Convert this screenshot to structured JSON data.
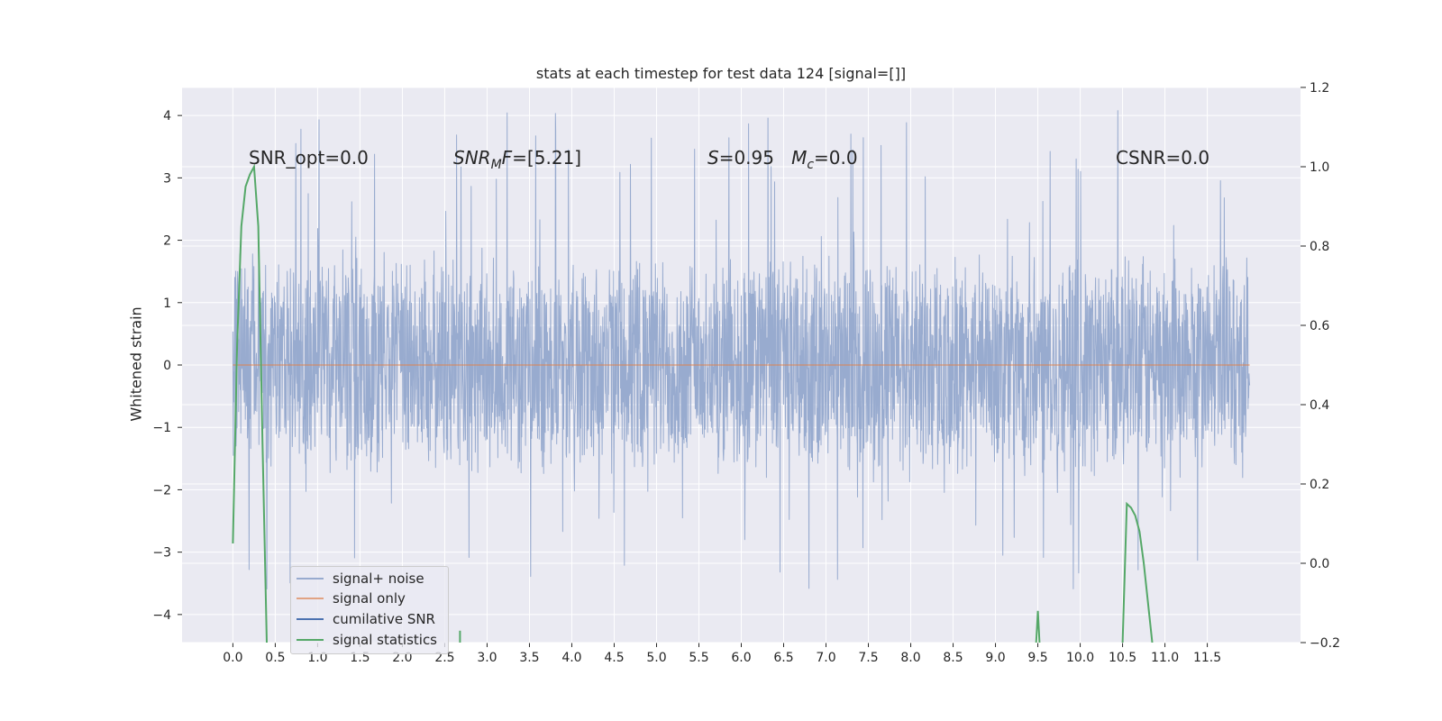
{
  "chart_data": {
    "type": "line",
    "title": "stats at each timestep for test data 124 [signal=[]]",
    "ylabel": "Whitened strain",
    "xlabel": "",
    "xlim": [
      -0.6,
      12.6
    ],
    "ylim": [
      -4.45,
      4.45
    ],
    "y2lim": [
      -0.2,
      1.2
    ],
    "grid": true,
    "legend_position": "lower-left",
    "x_ticks": [
      "0.0",
      "0.5",
      "1.0",
      "1.5",
      "2.0",
      "2.5",
      "3.0",
      "3.5",
      "4.0",
      "4.5",
      "5.0",
      "5.5",
      "6.0",
      "6.5",
      "7.0",
      "7.5",
      "8.0",
      "8.5",
      "9.0",
      "9.5",
      "10.0",
      "10.5",
      "11.0",
      "11.5"
    ],
    "y_ticks": [
      "4",
      "3",
      "2",
      "1",
      "0",
      "−1",
      "−2",
      "−3",
      "−4"
    ],
    "y2_ticks": [
      "1.2",
      "1.0",
      "0.8",
      "0.6",
      "0.4",
      "0.2",
      "0.0",
      "−0.2"
    ],
    "series": [
      {
        "name": "signal+ noise",
        "color": "#98abcf",
        "axis": "left",
        "x_range": [
          0,
          12.0
        ],
        "band_min": -2.0,
        "band_max": 2.0,
        "peak_max": 4.1,
        "peak_min": -3.6
      },
      {
        "name": "signal only",
        "color": "#dd8452",
        "axis": "left",
        "x": [
          0,
          12.0
        ],
        "y": [
          0,
          0
        ]
      },
      {
        "name": "cumilative SNR",
        "color": "#4c72b0",
        "axis": "right",
        "x": [],
        "y": []
      },
      {
        "name": "signal statistics",
        "color": "#55a868",
        "axis": "right",
        "segments": [
          {
            "x": [
              0.0,
              0.05,
              0.1,
              0.15,
              0.2,
              0.25,
              0.3,
              0.35,
              0.4
            ],
            "y": [
              0.05,
              0.55,
              0.85,
              0.95,
              0.98,
              1.0,
              0.85,
              0.3,
              -0.2
            ]
          },
          {
            "x": [
              2.68,
              2.68
            ],
            "y": [
              -0.2,
              -0.17
            ]
          },
          {
            "x": [
              9.48,
              9.5,
              9.52
            ],
            "y": [
              -0.2,
              -0.12,
              -0.2
            ]
          },
          {
            "x": [
              10.5,
              10.55,
              10.6,
              10.65,
              10.7,
              10.75,
              10.8,
              10.85
            ],
            "y": [
              -0.2,
              0.15,
              0.14,
              0.12,
              0.08,
              0.0,
              -0.1,
              -0.2
            ]
          }
        ]
      }
    ],
    "annotations": [
      {
        "text": "SNR_opt=0.0"
      },
      {
        "parts": [
          [
            "SNR",
            "i"
          ],
          [
            "M",
            "sub-i"
          ],
          [
            "F",
            "i"
          ],
          [
            "=[5.21]",
            ""
          ]
        ]
      },
      {
        "parts": [
          [
            "S",
            "i"
          ],
          [
            "=0.95   ",
            ""
          ],
          [
            "M",
            "i"
          ],
          [
            "c",
            "sub-i"
          ],
          [
            "=0.0",
            ""
          ]
        ]
      },
      {
        "text": "CSNR=0.0"
      }
    ]
  }
}
